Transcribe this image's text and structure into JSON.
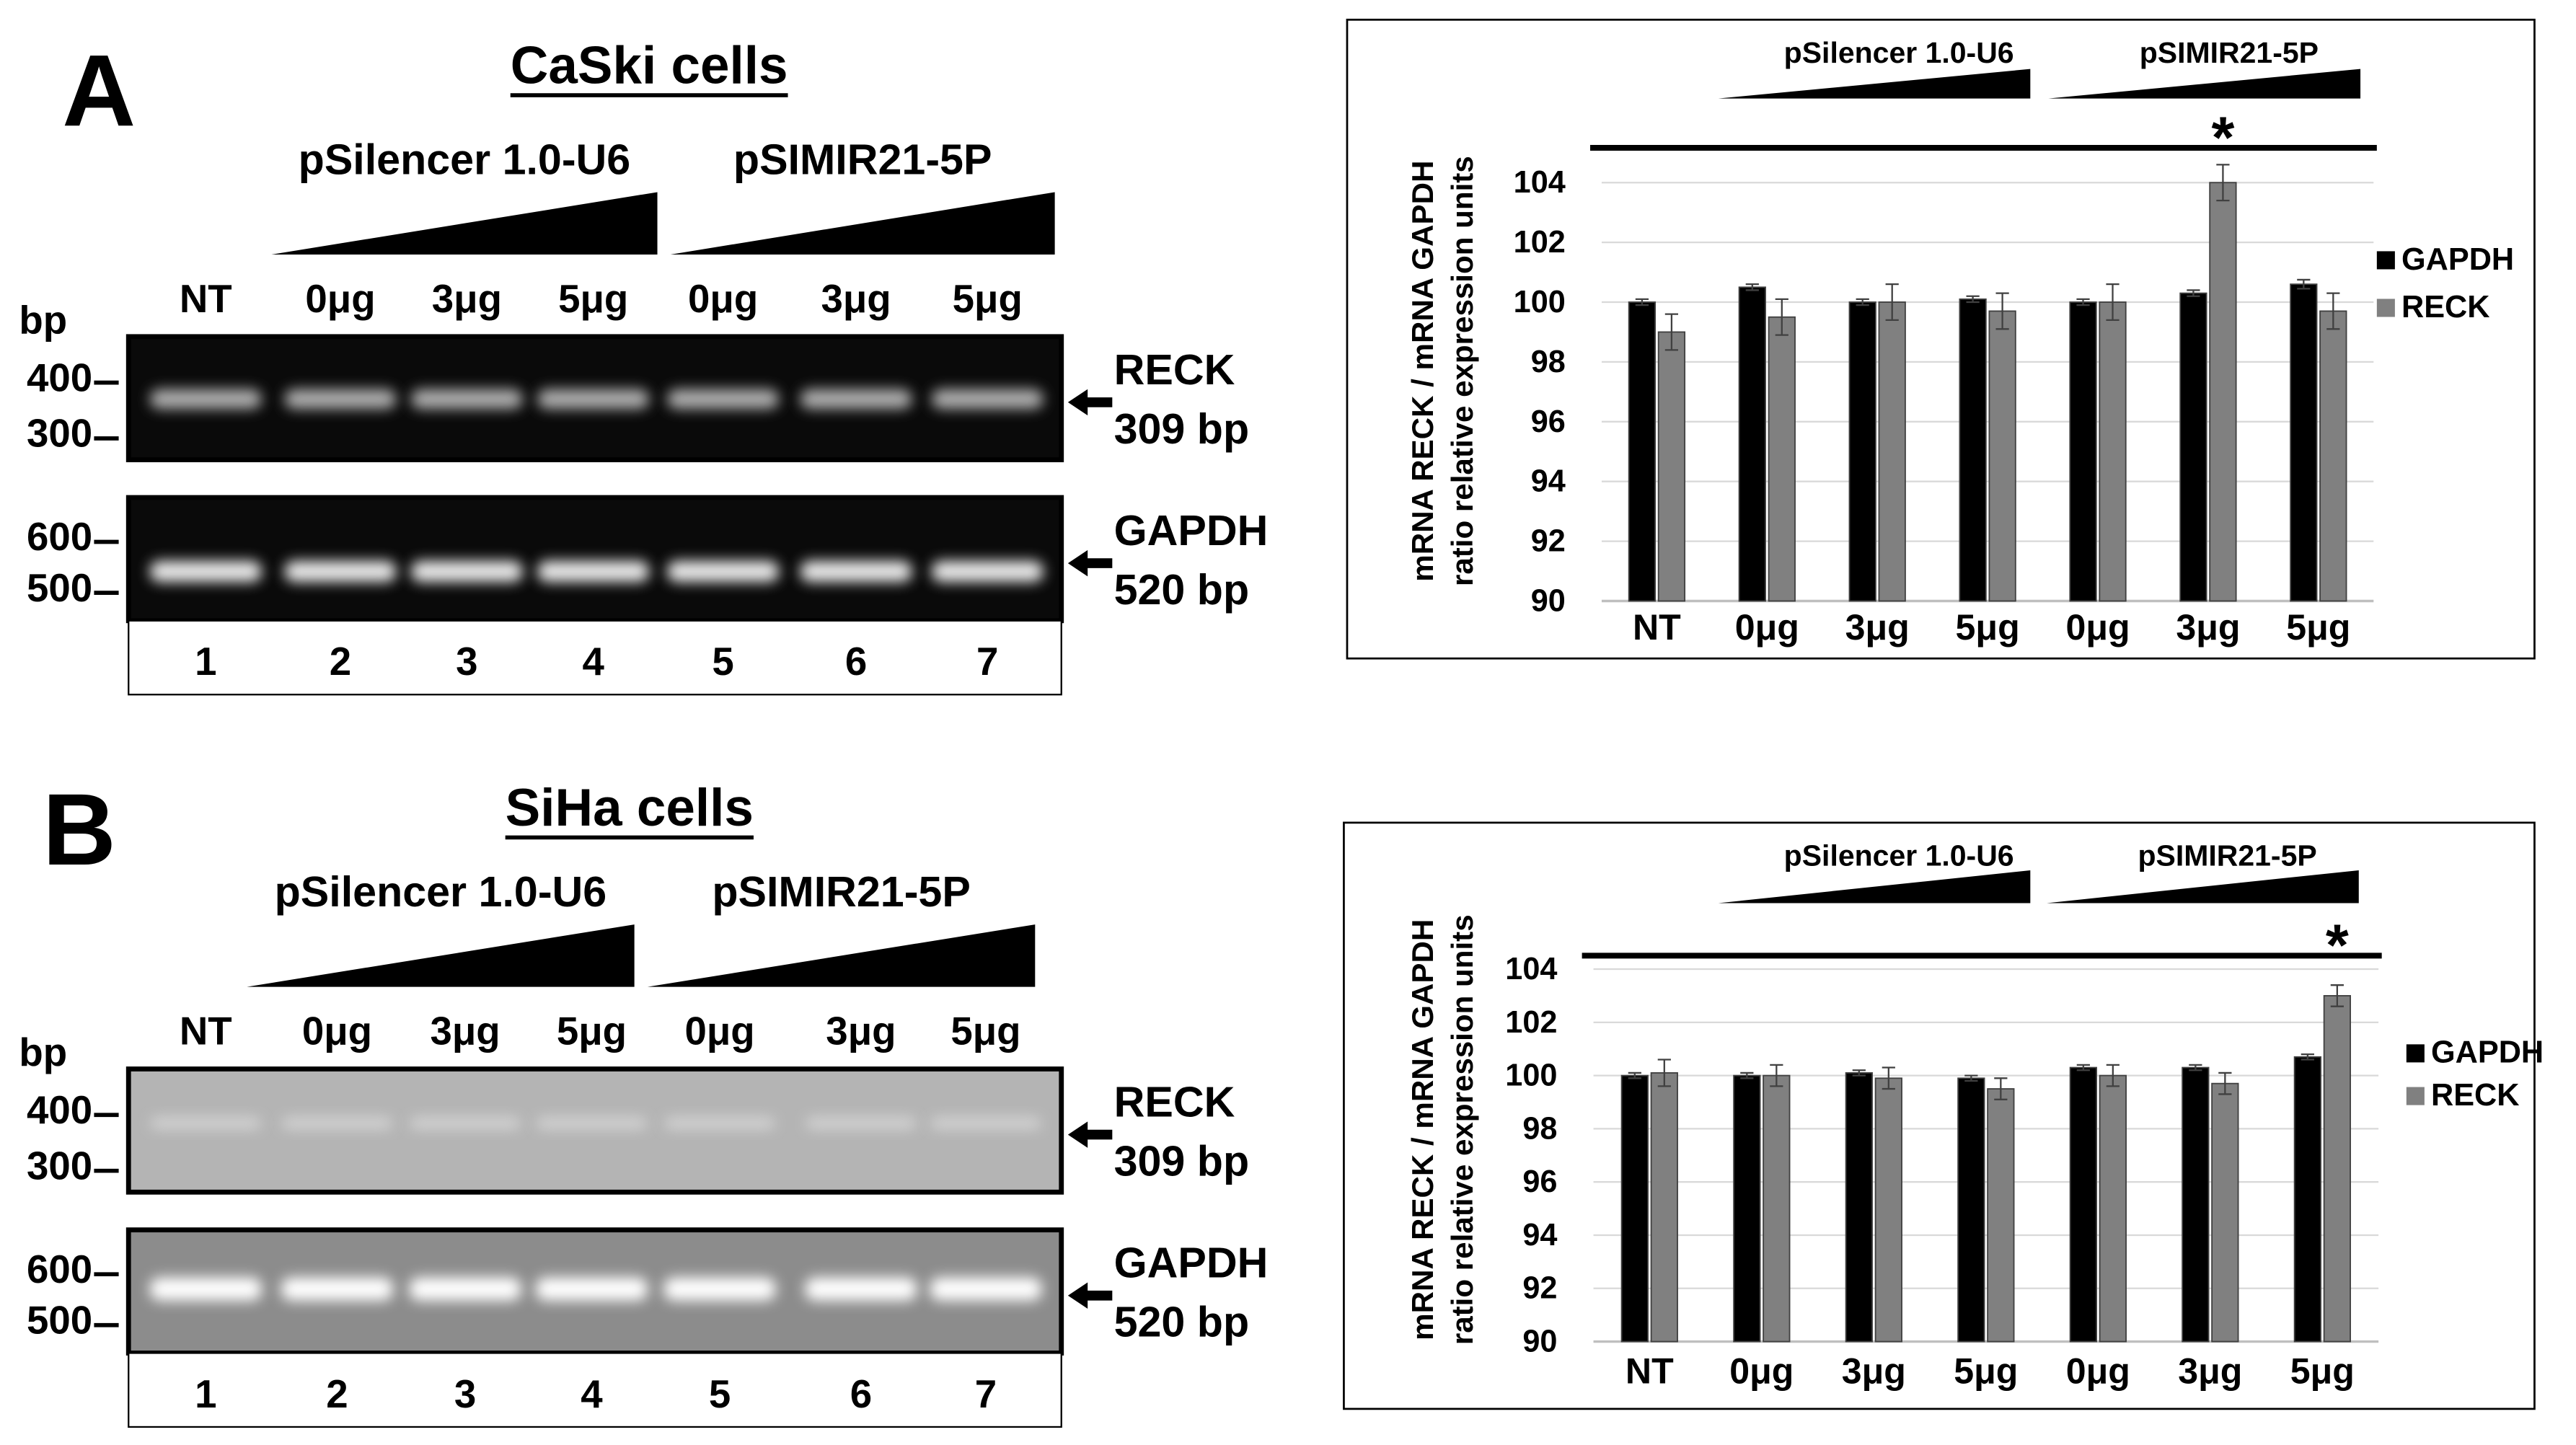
{
  "panels": [
    {
      "letter": "A",
      "title": "CaSki cells",
      "groups": [
        "pSilencer 1.0-U6",
        "pSIMIR21-5P"
      ],
      "lanes": [
        "NT",
        "0μg",
        "3μg",
        "5μg",
        "0μg",
        "3μg",
        "5μg"
      ],
      "bp_label": "bp",
      "gels": [
        {
          "markers": [
            400,
            300
          ],
          "gene": "RECK",
          "size": "309 bp"
        },
        {
          "markers": [
            600,
            500
          ],
          "gene": "GAPDH",
          "size": "520 bp"
        }
      ],
      "lane_numbers": [
        1,
        2,
        3,
        4,
        5,
        6,
        7
      ]
    },
    {
      "letter": "B",
      "title": "SiHa cells",
      "groups": [
        "pSilencer 1.0-U6",
        "pSIMIR21-5P"
      ],
      "lanes": [
        "NT",
        "0μg",
        "3μg",
        "5μg",
        "0μg",
        "3μg",
        "5μg"
      ],
      "bp_label": "bp",
      "gels": [
        {
          "markers": [
            400,
            300
          ],
          "gene": "RECK",
          "size": "309 bp"
        },
        {
          "markers": [
            600,
            500
          ],
          "gene": "GAPDH",
          "size": "520 bp"
        }
      ],
      "lane_numbers": [
        1,
        2,
        3,
        4,
        5,
        6,
        7
      ]
    }
  ],
  "chart_data": [
    {
      "type": "bar",
      "y_label": [
        "mRNA RECK / mRNA GAPDH",
        "ratio relative expression units"
      ],
      "groups": [
        "pSilencer 1.0-U6",
        "pSIMIR21-5P"
      ],
      "annotation": "*",
      "categories": [
        "NT",
        "0μg",
        "3μg",
        "5μg",
        "0μg",
        "3μg",
        "5μg"
      ],
      "series": [
        {
          "name": "GAPDH",
          "color": "#000000",
          "values": [
            100,
            100.5,
            100,
            100.1,
            100,
            100.3,
            100.6
          ],
          "errors": [
            0.1,
            0.1,
            0.1,
            0.1,
            0.1,
            0.1,
            0.15
          ]
        },
        {
          "name": "RECK",
          "color": "#808080",
          "values": [
            99,
            99.5,
            100,
            99.7,
            100,
            104,
            99.7
          ],
          "errors": [
            0.6,
            0.6,
            0.6,
            0.6,
            0.6,
            0.6,
            0.6
          ]
        }
      ],
      "ylim": [
        90,
        105
      ],
      "yticks": [
        90,
        92,
        94,
        96,
        98,
        100,
        102,
        104
      ],
      "grid": true,
      "legend": "right"
    },
    {
      "type": "bar",
      "y_label": [
        "mRNA RECK / mRNA GAPDH",
        "ratio relative expression units"
      ],
      "groups": [
        "pSilencer 1.0-U6",
        "pSIMIR21-5P"
      ],
      "annotation": "*",
      "categories": [
        "NT",
        "0μg",
        "3μg",
        "5μg",
        "0μg",
        "3μg",
        "5μg"
      ],
      "series": [
        {
          "name": "GAPDH",
          "color": "#000000",
          "values": [
            100,
            100,
            100.1,
            99.9,
            100.3,
            100.3,
            100.7
          ],
          "errors": [
            0.1,
            0.1,
            0.1,
            0.1,
            0.1,
            0.1,
            0.1
          ]
        },
        {
          "name": "RECK",
          "color": "#808080",
          "values": [
            100.1,
            100,
            99.9,
            99.5,
            100,
            99.7,
            103
          ],
          "errors": [
            0.5,
            0.4,
            0.4,
            0.4,
            0.4,
            0.4,
            0.4
          ]
        }
      ],
      "ylim": [
        90,
        105
      ],
      "yticks": [
        90,
        92,
        94,
        96,
        98,
        100,
        102,
        104
      ],
      "grid": true,
      "legend": "right"
    }
  ]
}
